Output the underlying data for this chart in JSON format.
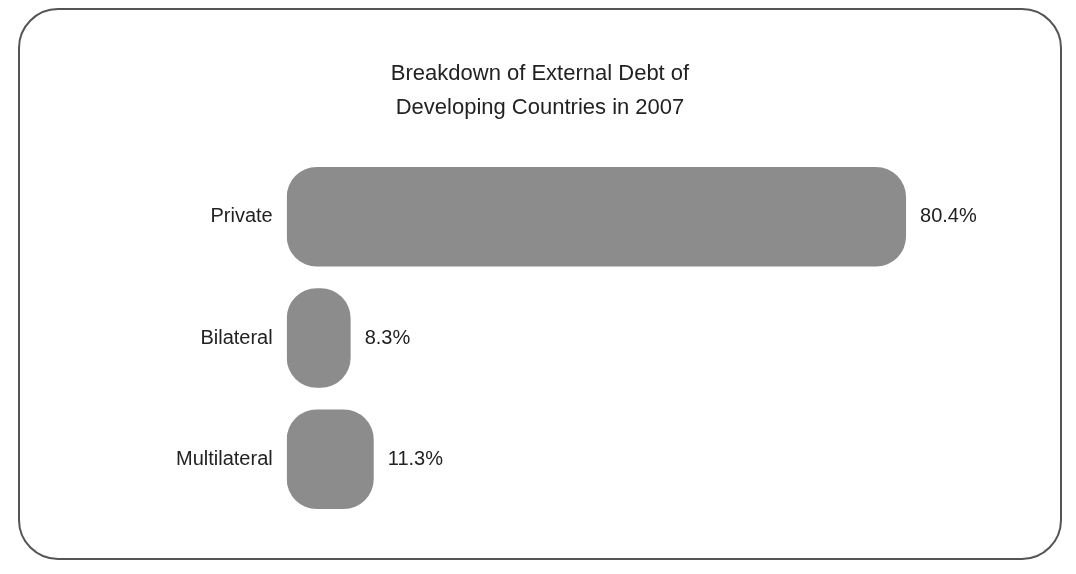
{
  "chart_data": {
    "type": "bar",
    "orientation": "horizontal",
    "title": "Breakdown of External Debt of Developing Countries in 2007",
    "categories": [
      "Private",
      "Bilateral",
      "Multilateral"
    ],
    "values": [
      80.4,
      8.3,
      11.3
    ],
    "color": "#8c8c8c",
    "tick_labels": "y",
    "data_labels": true,
    "value_labels": [
      "80.4%",
      "8.3%",
      "11.3%"
    ],
    "legend": false
  }
}
